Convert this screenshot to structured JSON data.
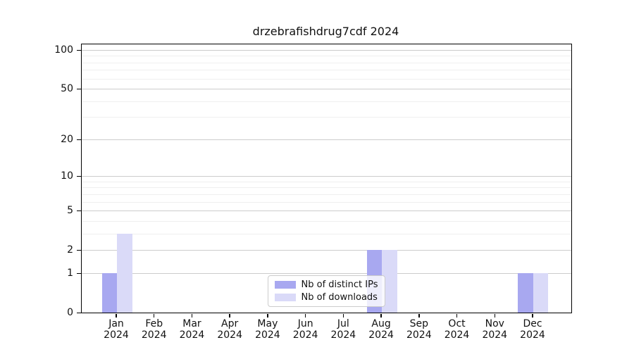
{
  "chart_data": {
    "type": "bar",
    "title": "drzebrafishdrug7cdf 2024",
    "categories": [
      {
        "month": "Jan",
        "year": "2024"
      },
      {
        "month": "Feb",
        "year": "2024"
      },
      {
        "month": "Mar",
        "year": "2024"
      },
      {
        "month": "Apr",
        "year": "2024"
      },
      {
        "month": "May",
        "year": "2024"
      },
      {
        "month": "Jun",
        "year": "2024"
      },
      {
        "month": "Jul",
        "year": "2024"
      },
      {
        "month": "Aug",
        "year": "2024"
      },
      {
        "month": "Sep",
        "year": "2024"
      },
      {
        "month": "Oct",
        "year": "2024"
      },
      {
        "month": "Nov",
        "year": "2024"
      },
      {
        "month": "Dec",
        "year": "2024"
      }
    ],
    "series": [
      {
        "name": "Nb of distinct IPs",
        "color": "#a8a8f0",
        "values": [
          1,
          0,
          0,
          0,
          0,
          0,
          0,
          2,
          0,
          0,
          0,
          1
        ]
      },
      {
        "name": "Nb of downloads",
        "color": "#dadaf8",
        "values": [
          3,
          0,
          0,
          0,
          0,
          0,
          0,
          2,
          0,
          0,
          0,
          1
        ]
      }
    ],
    "yaxis": {
      "scale": "log1p",
      "ticks": [
        0,
        1,
        2,
        5,
        10,
        20,
        50,
        100
      ],
      "minor_ticks": [
        3,
        4,
        6,
        7,
        8,
        9,
        30,
        40,
        60,
        70,
        80,
        90
      ],
      "top_value": 110
    },
    "grid": {
      "major_color": "#cccccc",
      "minor_color": "#efefef"
    },
    "legend": {
      "position": "lower center"
    }
  }
}
